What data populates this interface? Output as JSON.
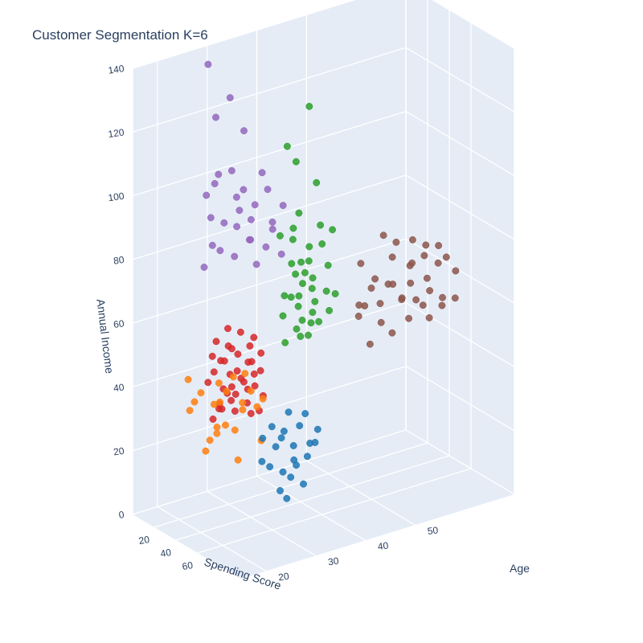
{
  "chart_data": {
    "type": "scatter",
    "title": "Customer Segmentation K=6",
    "axes": {
      "x": {
        "label": "Spending Score",
        "ticks": [
          20,
          40,
          60
        ]
      },
      "y": {
        "label": "Age",
        "ticks": [
          20,
          30,
          40,
          50
        ]
      },
      "z": {
        "label": "Annual Income",
        "ticks": [
          0,
          20,
          40,
          60,
          80,
          100,
          120,
          140
        ],
        "range": [
          0,
          140
        ]
      }
    },
    "grid": true,
    "series": [
      {
        "color": "#9467bd",
        "points": [
          [
            10,
            28,
            137
          ],
          [
            12,
            32,
            125
          ],
          [
            8,
            30,
            119
          ],
          [
            11,
            35,
            113
          ],
          [
            15,
            29,
            103
          ],
          [
            9,
            33,
            101
          ],
          [
            14,
            38,
            99
          ],
          [
            7,
            30,
            98
          ],
          [
            13,
            27,
            97
          ],
          [
            18,
            32,
            95
          ],
          [
            6,
            36,
            93
          ],
          [
            10,
            40,
            92
          ],
          [
            16,
            33,
            90
          ],
          [
            12,
            37,
            89
          ],
          [
            8,
            29,
            88
          ],
          [
            15,
            42,
            87
          ],
          [
            11,
            31,
            86
          ],
          [
            13,
            36,
            85
          ],
          [
            19,
            39,
            84
          ],
          [
            9,
            34,
            83
          ],
          [
            14,
            28,
            81
          ],
          [
            17,
            35,
            80
          ],
          [
            10,
            41,
            79
          ],
          [
            12,
            30,
            78
          ],
          [
            7,
            37,
            77
          ],
          [
            16,
            32,
            76
          ],
          [
            13,
            39,
            75
          ],
          [
            11,
            27,
            74
          ],
          [
            18,
            36,
            72
          ],
          [
            9,
            43,
            70
          ]
        ]
      },
      {
        "color": "#2ca02c",
        "points": [
          [
            85,
            32,
            137
          ],
          [
            83,
            28,
            126
          ],
          [
            82,
            30,
            120
          ],
          [
            87,
            33,
            113
          ],
          [
            80,
            31,
            103
          ],
          [
            84,
            29,
            100
          ],
          [
            86,
            34,
            99
          ],
          [
            81,
            27,
            98
          ],
          [
            88,
            36,
            97
          ],
          [
            79,
            30,
            95
          ],
          [
            85,
            32,
            93
          ],
          [
            83,
            35,
            92
          ],
          [
            87,
            28,
            90
          ],
          [
            82,
            31,
            88
          ],
          [
            80,
            33,
            87
          ],
          [
            86,
            29,
            86
          ],
          [
            84,
            36,
            85
          ],
          [
            81,
            32,
            84
          ],
          [
            88,
            30,
            83
          ],
          [
            79,
            34,
            81
          ],
          [
            85,
            27,
            80
          ],
          [
            83,
            33,
            79
          ],
          [
            87,
            35,
            78
          ],
          [
            82,
            29,
            78
          ],
          [
            80,
            31,
            77
          ],
          [
            86,
            37,
            76
          ],
          [
            84,
            30,
            75
          ],
          [
            81,
            34,
            74
          ],
          [
            88,
            32,
            73
          ],
          [
            79,
            28,
            72
          ],
          [
            85,
            36,
            71
          ],
          [
            83,
            31,
            70
          ],
          [
            87,
            29,
            69
          ],
          [
            82,
            33,
            68
          ],
          [
            80,
            35,
            67
          ],
          [
            86,
            30,
            66
          ],
          [
            84,
            32,
            65
          ],
          [
            81,
            28,
            64
          ]
        ]
      },
      {
        "color": "#8c564b",
        "points": [
          [
            48,
            55,
            78
          ],
          [
            52,
            60,
            75
          ],
          [
            46,
            58,
            74
          ],
          [
            55,
            62,
            73
          ],
          [
            50,
            50,
            72
          ],
          [
            53,
            65,
            71
          ],
          [
            47,
            57,
            70
          ],
          [
            56,
            59,
            69
          ],
          [
            49,
            63,
            68
          ],
          [
            54,
            52,
            67
          ],
          [
            51,
            67,
            66
          ],
          [
            45,
            61,
            65
          ],
          [
            57,
            54,
            65
          ],
          [
            48,
            66,
            64
          ],
          [
            52,
            56,
            63
          ],
          [
            46,
            53,
            62
          ],
          [
            55,
            68,
            62
          ],
          [
            50,
            60,
            61
          ],
          [
            53,
            49,
            60
          ],
          [
            47,
            64,
            60
          ],
          [
            56,
            57,
            59
          ],
          [
            49,
            51,
            58
          ],
          [
            54,
            63,
            58
          ],
          [
            51,
            58,
            57
          ],
          [
            45,
            55,
            56
          ],
          [
            57,
            61,
            55
          ],
          [
            48,
            50,
            55
          ],
          [
            52,
            66,
            54
          ],
          [
            46,
            62,
            54
          ],
          [
            55,
            53,
            53
          ],
          [
            50,
            69,
            52
          ],
          [
            53,
            59,
            51
          ],
          [
            47,
            67,
            50
          ],
          [
            56,
            55,
            49
          ],
          [
            49,
            64,
            48
          ],
          [
            54,
            51,
            47
          ]
        ]
      },
      {
        "color": "#d62728",
        "points": [
          [
            42,
            25,
            62
          ],
          [
            45,
            22,
            60
          ],
          [
            40,
            28,
            59
          ],
          [
            47,
            24,
            58
          ],
          [
            43,
            30,
            57
          ],
          [
            46,
            21,
            56
          ],
          [
            41,
            26,
            55
          ],
          [
            44,
            29,
            55
          ],
          [
            48,
            23,
            54
          ],
          [
            42,
            27,
            53
          ],
          [
            45,
            31,
            52
          ],
          [
            40,
            24,
            52
          ],
          [
            47,
            28,
            51
          ],
          [
            43,
            22,
            50
          ],
          [
            46,
            26,
            49
          ],
          [
            41,
            30,
            49
          ],
          [
            44,
            25,
            48
          ],
          [
            48,
            29,
            47
          ],
          [
            42,
            21,
            47
          ],
          [
            45,
            27,
            46
          ],
          [
            40,
            32,
            45
          ],
          [
            47,
            23,
            45
          ],
          [
            43,
            28,
            44
          ],
          [
            46,
            24,
            43
          ],
          [
            41,
            26,
            43
          ],
          [
            44,
            30,
            42
          ],
          [
            48,
            22,
            41
          ],
          [
            42,
            29,
            41
          ],
          [
            45,
            25,
            40
          ],
          [
            40,
            27,
            40
          ],
          [
            47,
            31,
            39
          ],
          [
            43,
            23,
            38
          ],
          [
            46,
            28,
            38
          ],
          [
            41,
            24,
            37
          ],
          [
            44,
            26,
            36
          ],
          [
            48,
            30,
            35
          ],
          [
            42,
            22,
            35
          ],
          [
            45,
            29,
            34
          ]
        ]
      },
      {
        "color": "#ff7f0e",
        "points": [
          [
            10,
            24,
            40
          ],
          [
            20,
            28,
            39
          ],
          [
            15,
            32,
            38
          ],
          [
            25,
            22,
            37
          ],
          [
            12,
            35,
            37
          ],
          [
            30,
            26,
            36
          ],
          [
            18,
            30,
            35
          ],
          [
            22,
            34,
            34
          ],
          [
            8,
            27,
            34
          ],
          [
            28,
            31,
            33
          ],
          [
            16,
            23,
            32
          ],
          [
            24,
            36,
            31
          ],
          [
            11,
            29,
            30
          ],
          [
            32,
            25,
            29
          ],
          [
            19,
            33,
            28
          ],
          [
            26,
            28,
            27
          ],
          [
            14,
            37,
            26
          ],
          [
            30,
            24,
            25
          ],
          [
            21,
            31,
            23
          ],
          [
            9,
            30,
            20
          ],
          [
            27,
            35,
            19
          ],
          [
            17,
            26,
            18
          ],
          [
            33,
            29,
            17
          ]
        ]
      },
      {
        "color": "#1f77b4",
        "points": [
          [
            75,
            30,
            40
          ],
          [
            78,
            26,
            38
          ],
          [
            72,
            34,
            37
          ],
          [
            80,
            28,
            36
          ],
          [
            76,
            32,
            35
          ],
          [
            74,
            25,
            34
          ],
          [
            79,
            35,
            33
          ],
          [
            73,
            29,
            32
          ],
          [
            77,
            27,
            31
          ],
          [
            81,
            33,
            30
          ],
          [
            75,
            31,
            29
          ],
          [
            78,
            24,
            28
          ],
          [
            72,
            36,
            27
          ],
          [
            80,
            30,
            26
          ],
          [
            76,
            26,
            25
          ],
          [
            74,
            34,
            24
          ],
          [
            79,
            28,
            23
          ],
          [
            73,
            32,
            22
          ],
          [
            77,
            30,
            20
          ],
          [
            81,
            27,
            18
          ],
          [
            75,
            33,
            16
          ],
          [
            78,
            29,
            14
          ]
        ]
      }
    ]
  }
}
